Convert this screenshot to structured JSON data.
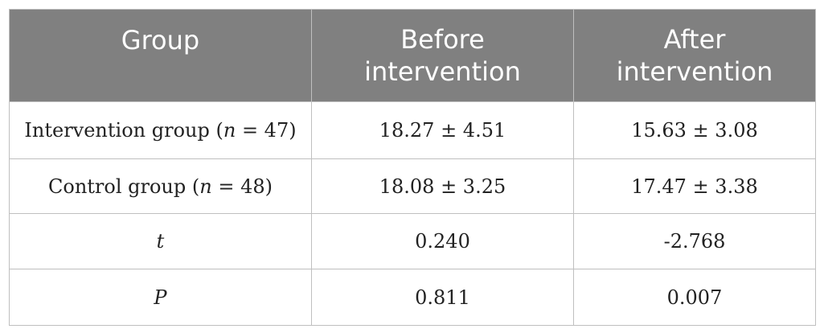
{
  "table": {
    "headers": {
      "group": "Group",
      "before": "Before intervention",
      "after": "After intervention"
    },
    "rows": [
      {
        "label_main": "Intervention group (",
        "label_var": "n",
        "label_rest": " = 47)",
        "before": "18.27 ± 4.51",
        "after": "15.63 ± 3.08"
      },
      {
        "label_main": "Control group (",
        "label_var": "n",
        "label_rest": " = 48)",
        "before": "18.08 ± 3.25",
        "after": "17.47 ± 3.38"
      },
      {
        "label_var": "t",
        "before": "0.240",
        "after": "-2.768"
      },
      {
        "label_var": "P",
        "before": "0.811",
        "after": "0.007"
      }
    ]
  }
}
